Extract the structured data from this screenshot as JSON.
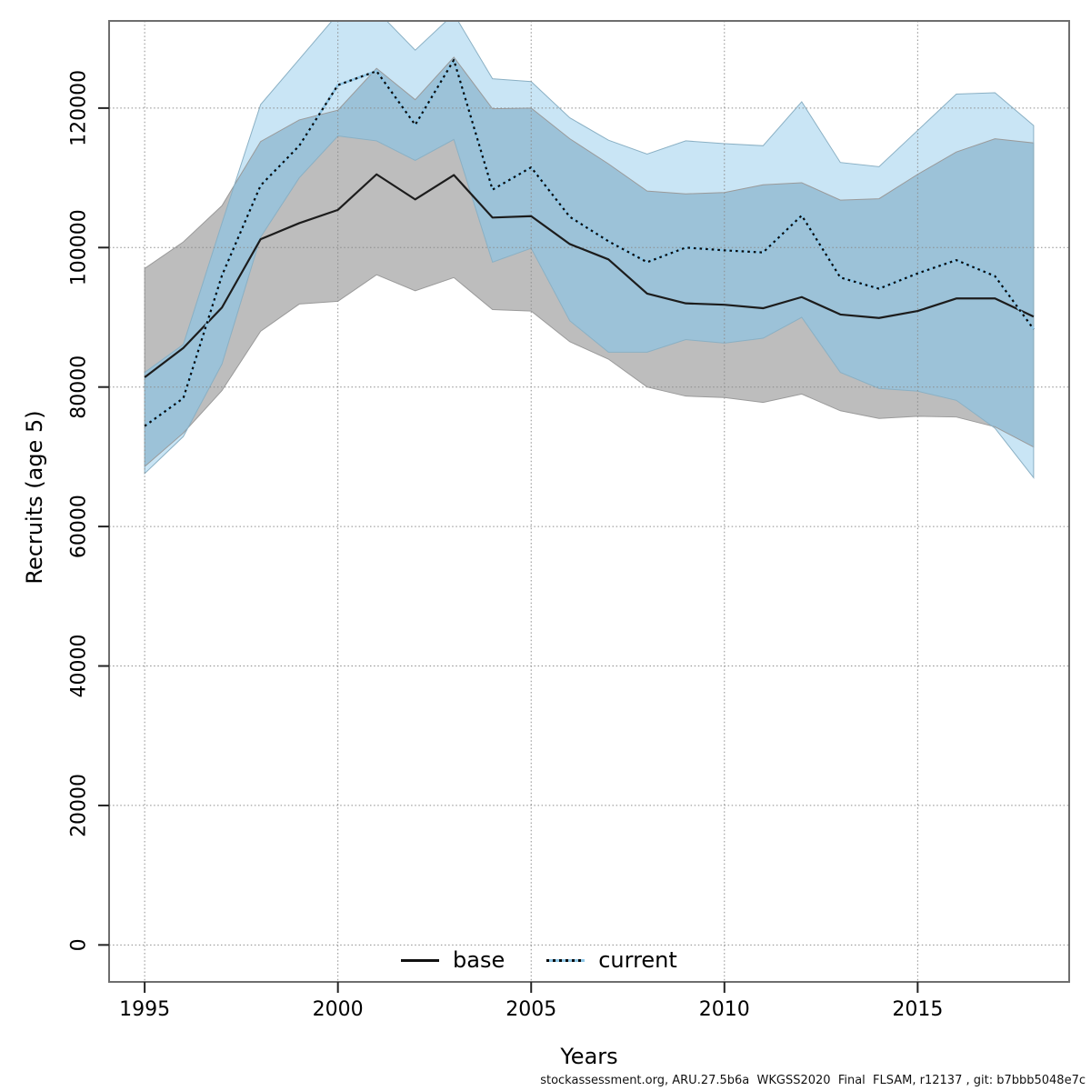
{
  "figure": {
    "caption": "stockassessment.org, ARU.27.5b6a  WKGSS2020  Final  FLSAM, r12137 , git: b7bbb5048e7c"
  },
  "legend": {
    "base_label": "base",
    "current_label": "current"
  },
  "chart_data": {
    "type": "line",
    "title": "",
    "xlabel": "Years",
    "ylabel": "Recruits (age 5)",
    "grid": true,
    "legend_position": "bottom-center-inside",
    "x": [
      1995,
      1996,
      1997,
      1998,
      1999,
      2000,
      2001,
      2002,
      2003,
      2004,
      2005,
      2006,
      2007,
      2008,
      2009,
      2010,
      2011,
      2012,
      2013,
      2014,
      2015,
      2016,
      2017,
      2018
    ],
    "xticks": [
      1995,
      2000,
      2005,
      2010,
      2015
    ],
    "yticks": [
      0,
      20000,
      40000,
      60000,
      80000,
      100000,
      120000
    ],
    "xlim": [
      1994.08,
      2018.92
    ],
    "ylim": [
      -5300,
      132500
    ],
    "colors": {
      "base_line": "#1c1c1c",
      "base_band": "#bdbdbd",
      "current_line_dot": "#0a0a0a",
      "current_line_under": "#8ec6e6",
      "current_band": "#c9e5f5",
      "band_overlap": "#9cc2d8",
      "gridline": "#8c8c8c",
      "border": "#6e6e6e"
    },
    "series": [
      {
        "name": "base",
        "style": "solid",
        "mid": [
          81400,
          85600,
          91400,
          101200,
          103500,
          105400,
          110500,
          106900,
          110400,
          104300,
          104500,
          100500,
          98300,
          93400,
          92000,
          91800,
          91300,
          92900,
          90400,
          89900,
          90900,
          92700,
          92700,
          90100
        ],
        "lo": [
          68600,
          73400,
          79500,
          88000,
          91900,
          92300,
          96100,
          93800,
          95700,
          91100,
          90900,
          86500,
          84000,
          80000,
          78700,
          78500,
          77800,
          79000,
          76600,
          75500,
          75800,
          75700,
          74300,
          71400
        ],
        "hi": [
          97000,
          100800,
          106000,
          115200,
          118300,
          119700,
          125700,
          121200,
          127300,
          119900,
          120000,
          115600,
          112000,
          108100,
          107700,
          107900,
          109000,
          109300,
          106800,
          107000,
          110500,
          113700,
          115600,
          115000
        ]
      },
      {
        "name": "current",
        "style": "dotted",
        "mid": [
          74400,
          78400,
          96000,
          108900,
          114600,
          123300,
          125300,
          117600,
          126900,
          108300,
          111500,
          104400,
          100900,
          97900,
          100000,
          99600,
          99300,
          104600,
          95700,
          94100,
          96300,
          98200,
          95900,
          88300
        ],
        "lo": [
          67600,
          72900,
          83300,
          101500,
          110000,
          116000,
          115300,
          112500,
          115500,
          97900,
          99900,
          89500,
          85000,
          85000,
          86800,
          86300,
          87000,
          90000,
          82100,
          79800,
          79400,
          78100,
          74100,
          67000
        ],
        "hi": [
          82100,
          86100,
          103500,
          120500,
          127000,
          133500,
          134000,
          128300,
          133500,
          124200,
          123800,
          118600,
          115400,
          113400,
          115300,
          114900,
          114600,
          120900,
          112200,
          111600,
          116800,
          122000,
          122200,
          117500
        ]
      }
    ]
  }
}
